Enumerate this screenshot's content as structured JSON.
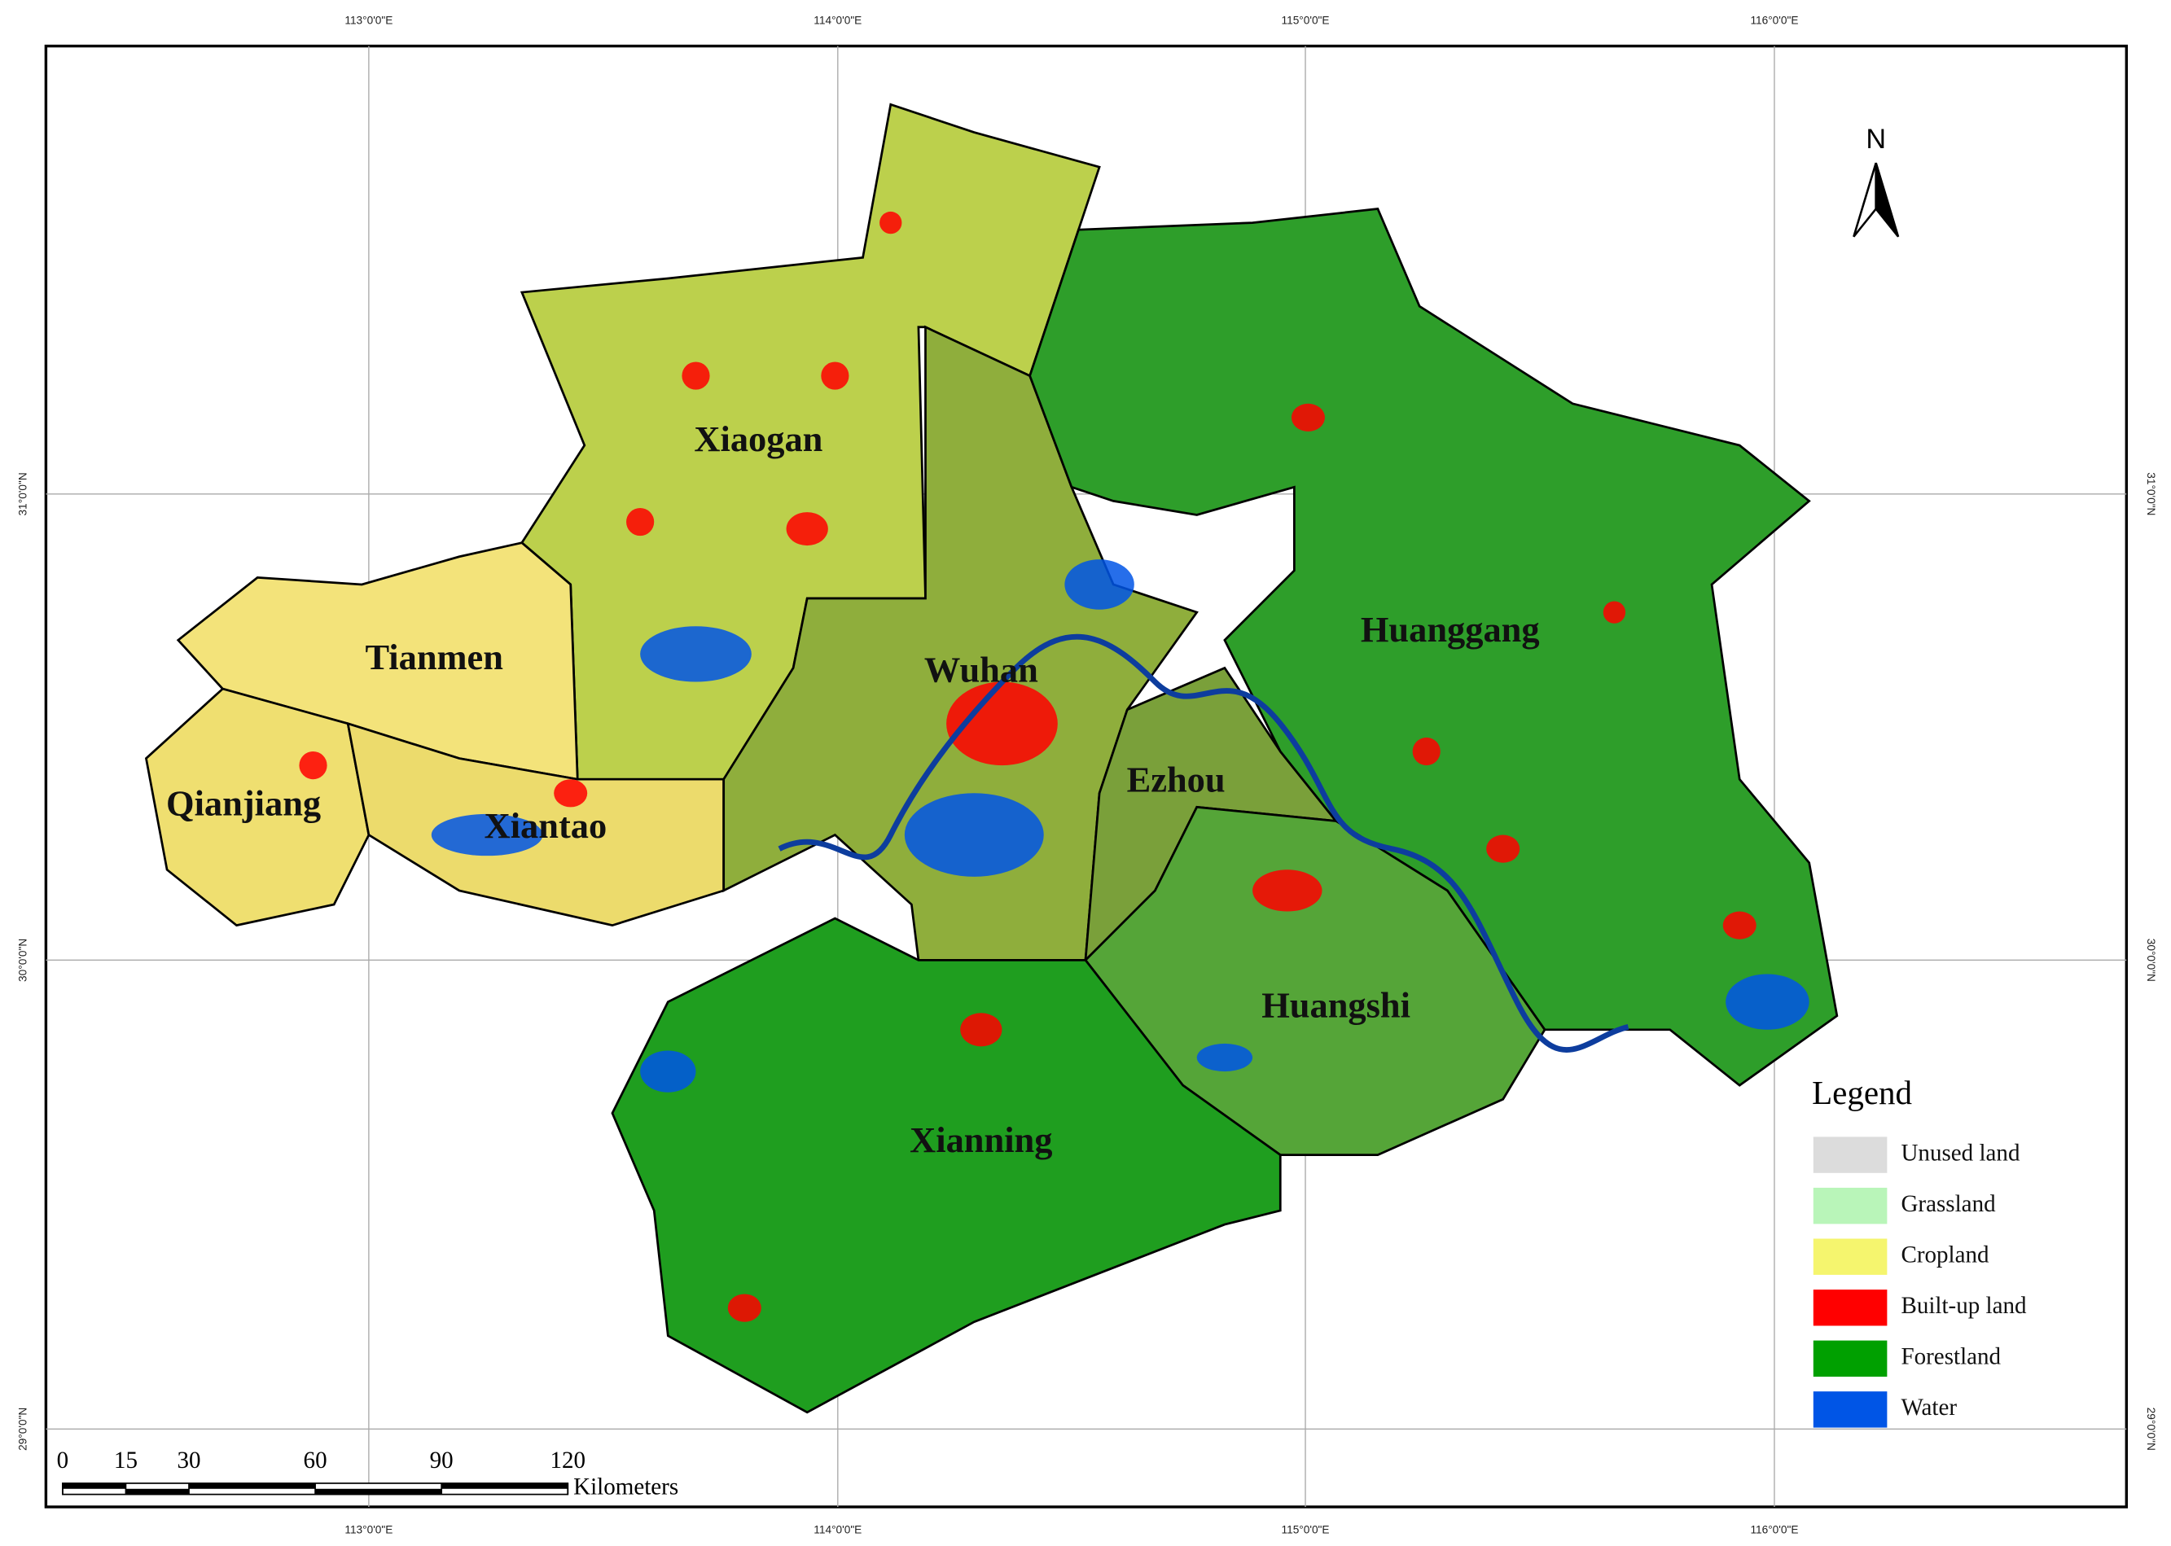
{
  "graticule": {
    "top_labels": [
      "113°0'0\"E",
      "114°0'0\"E",
      "115°0'0\"E",
      "116°0'0\"E"
    ],
    "bottom_labels": [
      "113°0'0\"E",
      "114°0'0\"E",
      "115°0'0\"E",
      "116°0'0\"E"
    ],
    "left_labels": [
      "31°0'0\"N",
      "30°0'0\"N",
      "29°0'0\"N"
    ],
    "right_labels": [
      "31°0'0\"N",
      "30°0'0\"N",
      "29°0'0\"N"
    ]
  },
  "regions": [
    {
      "name": "Xiaogan"
    },
    {
      "name": "Tianmen"
    },
    {
      "name": "Qianjiang"
    },
    {
      "name": "Xiantao"
    },
    {
      "name": "Wuhan"
    },
    {
      "name": "Ezhou"
    },
    {
      "name": "Huanggang"
    },
    {
      "name": "Huangshi"
    },
    {
      "name": "Xianning"
    }
  ],
  "north_arrow": "N",
  "legend": {
    "title": "Legend",
    "items": [
      {
        "label": "Unused land",
        "color": "#dcdcdc"
      },
      {
        "label": "Grassland",
        "color": "#b9f5b9"
      },
      {
        "label": "Cropland",
        "color": "#f5f56e"
      },
      {
        "label": "Built-up land",
        "color": "#ff0000"
      },
      {
        "label": "Forestland",
        "color": "#00a000"
      },
      {
        "label": "Water",
        "color": "#0055e6"
      }
    ]
  },
  "scale_bar": {
    "ticks": [
      0,
      15,
      30,
      60,
      90,
      120
    ],
    "unit": "Kilometers"
  }
}
